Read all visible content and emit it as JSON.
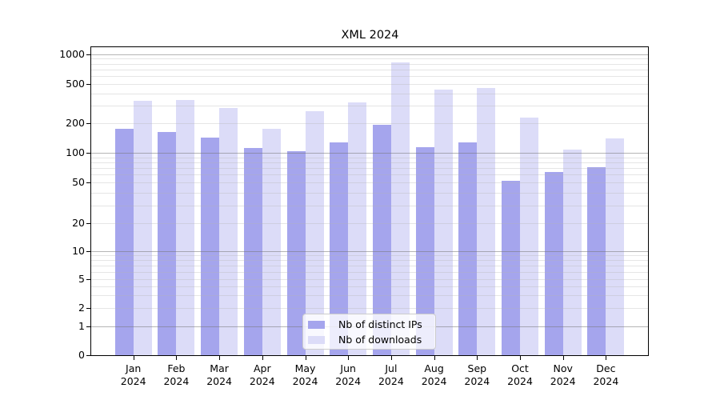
{
  "chart_data": {
    "type": "bar",
    "title": "XML 2024",
    "categories": [
      "Jan",
      "Feb",
      "Mar",
      "Apr",
      "May",
      "Jun",
      "Jul",
      "Aug",
      "Sep",
      "Oct",
      "Nov",
      "Dec"
    ],
    "x_year_label": "2024",
    "series": [
      {
        "name": "Nb of distinct IPs",
        "color": "#a5a5ed",
        "values": [
          175,
          162,
          142,
          111,
          103,
          128,
          192,
          114,
          126,
          52,
          64,
          72
        ]
      },
      {
        "name": "Nb of downloads",
        "color": "#dcdcf8",
        "values": [
          335,
          343,
          285,
          175,
          264,
          322,
          825,
          440,
          450,
          225,
          108,
          140
        ]
      }
    ],
    "yticks": [
      0,
      1,
      2,
      5,
      10,
      20,
      50,
      100,
      200,
      500,
      1000
    ],
    "ylim": [
      0,
      1000
    ],
    "yscale": "symlog",
    "grid": true,
    "legend_position": "lower center",
    "colors": {
      "major_gridline": "#b3b3b3",
      "minor_gridline": "#e8e8e8",
      "axis": "#000000",
      "background": "#ffffff",
      "text": "#000000"
    }
  }
}
